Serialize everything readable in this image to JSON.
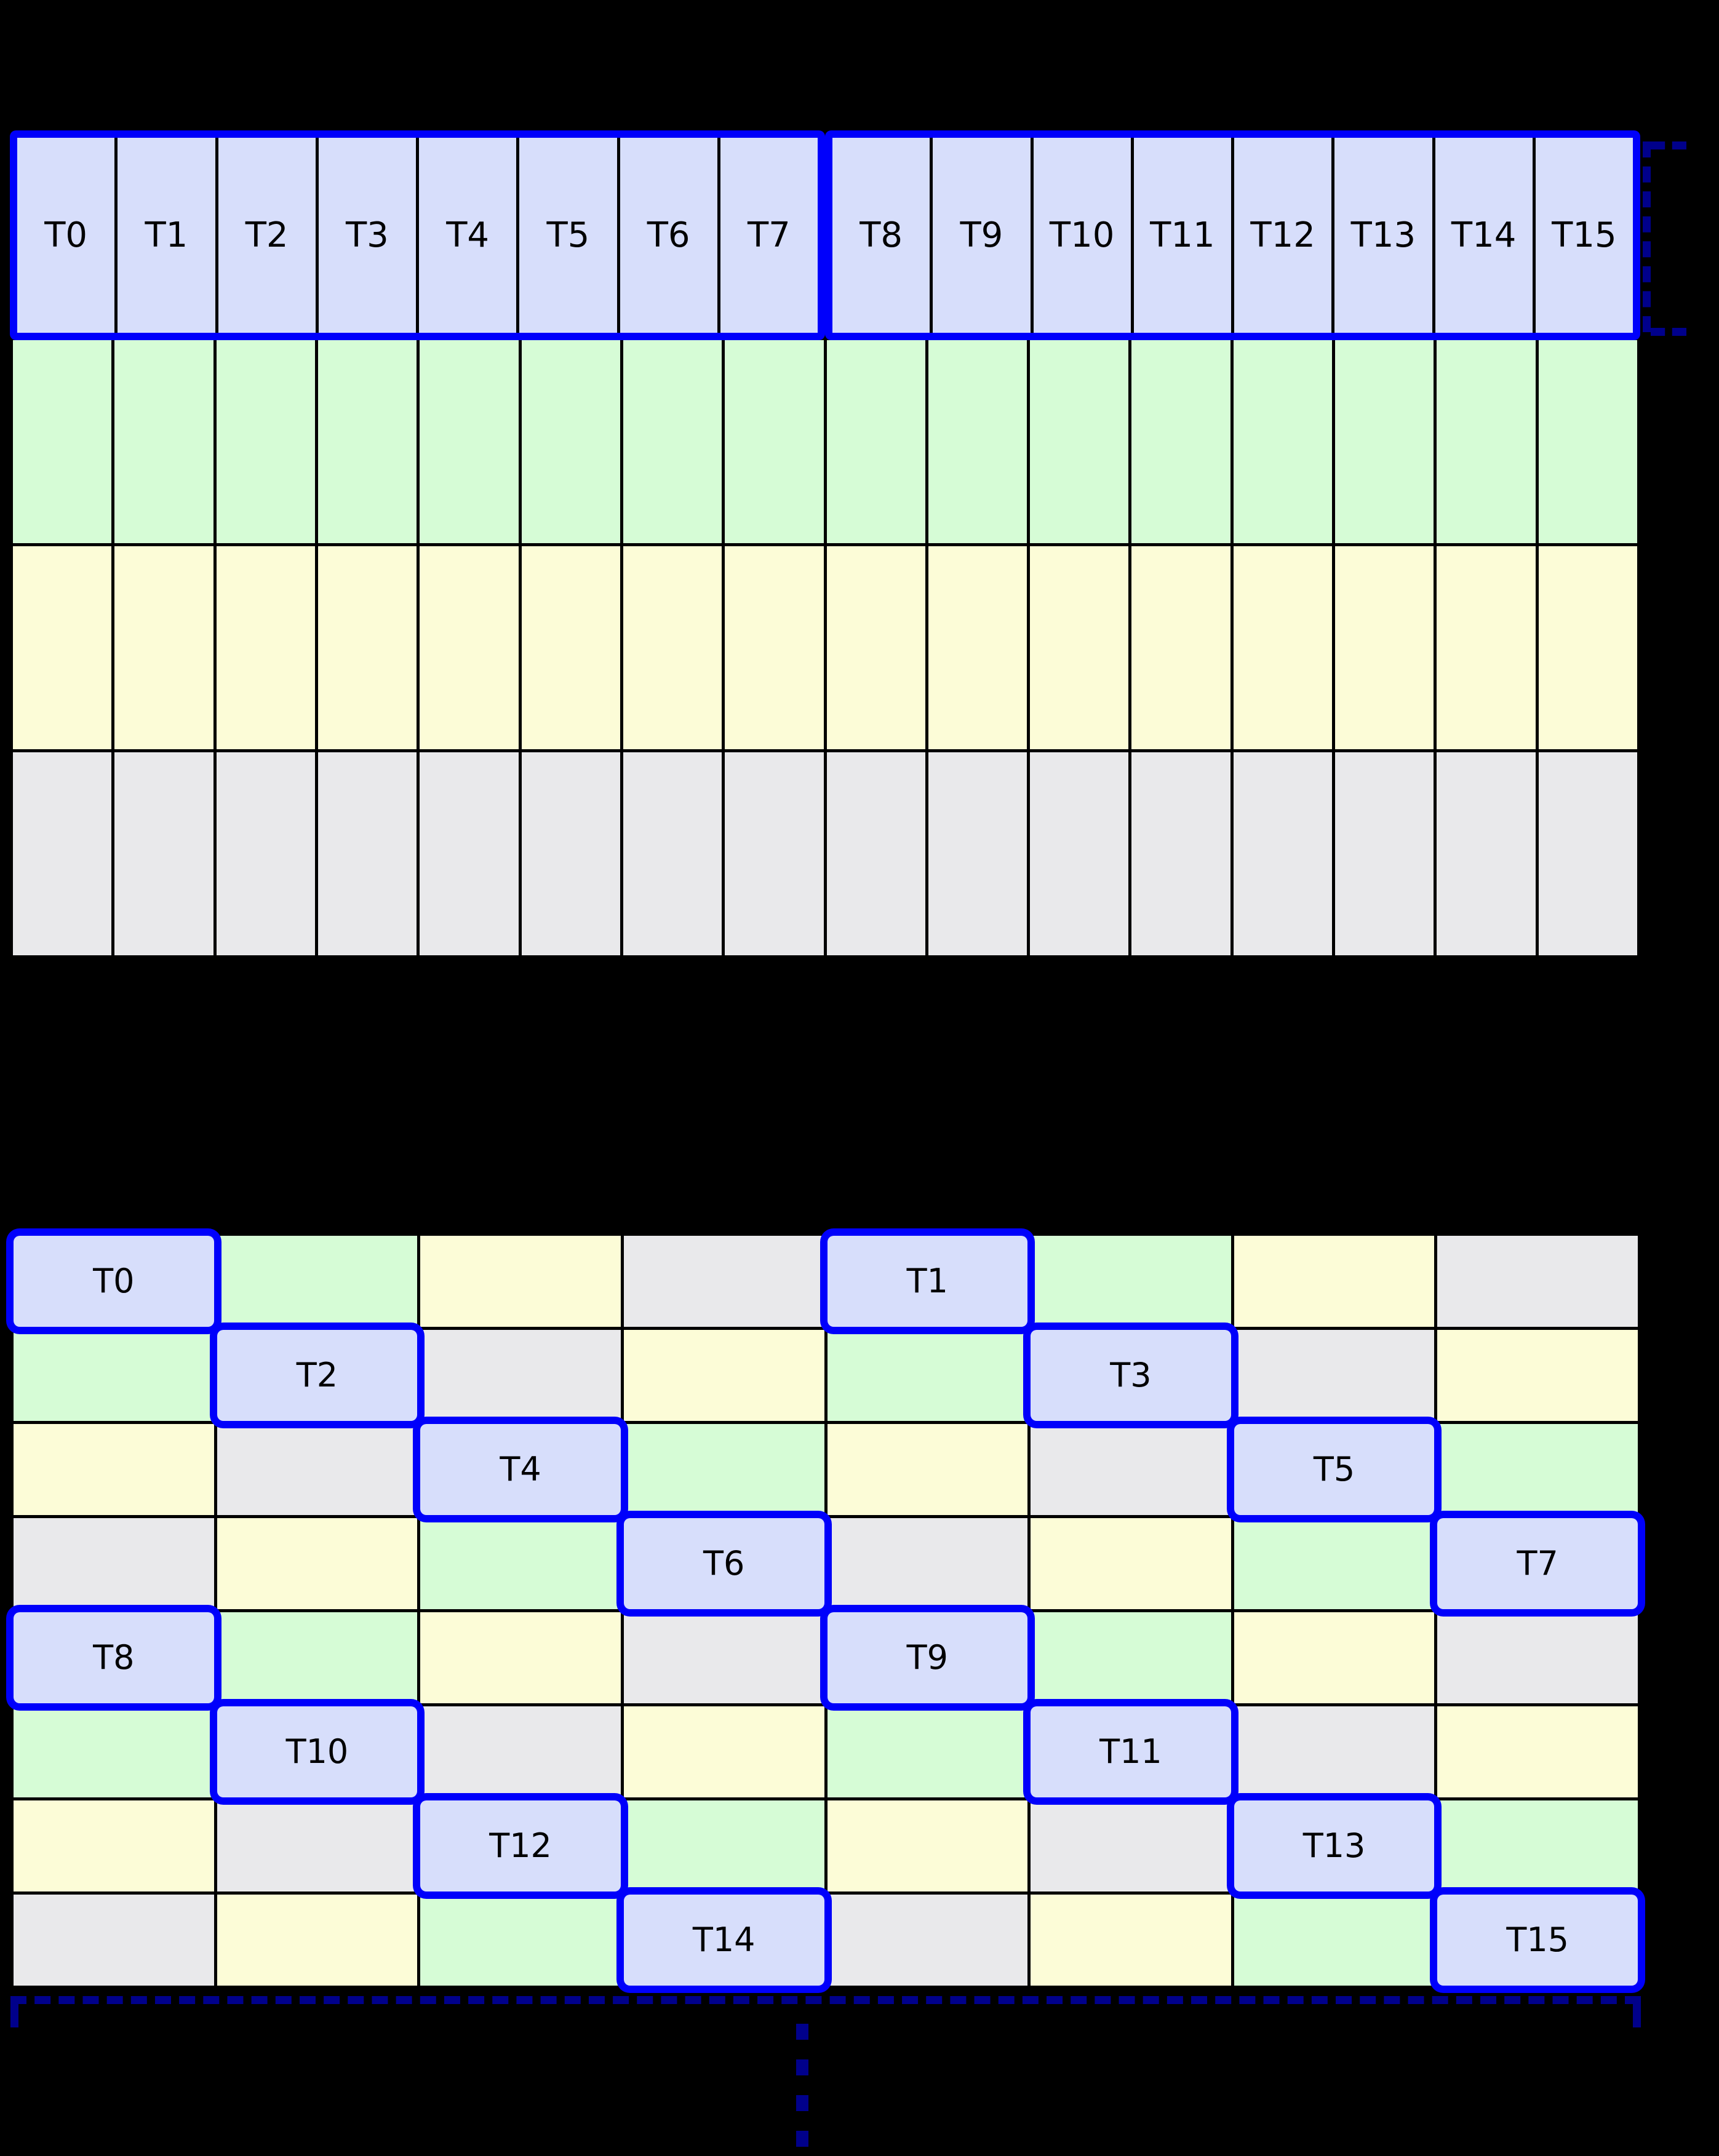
{
  "colors": {
    "background": "#000000",
    "cell_blue": "#d7defb",
    "cell_green": "#d6fcd6",
    "cell_yellow": "#fcfcd7",
    "cell_gray": "#e9e9eb",
    "highlight_blue": "#0000fb",
    "bracket_navy": "#00008b",
    "grid_line": "#000000",
    "text": "#000000"
  },
  "top_grid": {
    "thread_labels": [
      "T0",
      "T1",
      "T2",
      "T3",
      "T4",
      "T5",
      "T6",
      "T7",
      "T8",
      "T9",
      "T10",
      "T11",
      "T12",
      "T13",
      "T14",
      "T15"
    ],
    "group_size": 8,
    "memory_rows": [
      "green",
      "yellow",
      "gray"
    ]
  },
  "bottom_grid": {
    "rows": [
      {
        "cells": [
          {
            "color": "blue",
            "label": "T0",
            "highlight": true
          },
          {
            "color": "green"
          },
          {
            "color": "yellow"
          },
          {
            "color": "gray"
          },
          {
            "color": "blue",
            "label": "T1",
            "highlight": true
          },
          {
            "color": "green"
          },
          {
            "color": "yellow"
          },
          {
            "color": "gray"
          }
        ]
      },
      {
        "cells": [
          {
            "color": "green"
          },
          {
            "color": "blue",
            "label": "T2",
            "highlight": true
          },
          {
            "color": "gray"
          },
          {
            "color": "yellow"
          },
          {
            "color": "green"
          },
          {
            "color": "blue",
            "label": "T3",
            "highlight": true
          },
          {
            "color": "gray"
          },
          {
            "color": "yellow"
          }
        ]
      },
      {
        "cells": [
          {
            "color": "yellow"
          },
          {
            "color": "gray"
          },
          {
            "color": "blue",
            "label": "T4",
            "highlight": true
          },
          {
            "color": "green"
          },
          {
            "color": "yellow"
          },
          {
            "color": "gray"
          },
          {
            "color": "blue",
            "label": "T5",
            "highlight": true
          },
          {
            "color": "green"
          }
        ]
      },
      {
        "cells": [
          {
            "color": "gray"
          },
          {
            "color": "yellow"
          },
          {
            "color": "green"
          },
          {
            "color": "blue",
            "label": "T6",
            "highlight": true
          },
          {
            "color": "gray"
          },
          {
            "color": "yellow"
          },
          {
            "color": "green"
          },
          {
            "color": "blue",
            "label": "T7",
            "highlight": true
          }
        ]
      },
      {
        "cells": [
          {
            "color": "blue",
            "label": "T8",
            "highlight": true
          },
          {
            "color": "green"
          },
          {
            "color": "yellow"
          },
          {
            "color": "gray"
          },
          {
            "color": "blue",
            "label": "T9",
            "highlight": true
          },
          {
            "color": "green"
          },
          {
            "color": "yellow"
          },
          {
            "color": "gray"
          }
        ]
      },
      {
        "cells": [
          {
            "color": "green"
          },
          {
            "color": "blue",
            "label": "T10",
            "highlight": true
          },
          {
            "color": "gray"
          },
          {
            "color": "yellow"
          },
          {
            "color": "green"
          },
          {
            "color": "blue",
            "label": "T11",
            "highlight": true
          },
          {
            "color": "gray"
          },
          {
            "color": "yellow"
          }
        ]
      },
      {
        "cells": [
          {
            "color": "yellow"
          },
          {
            "color": "gray"
          },
          {
            "color": "blue",
            "label": "T12",
            "highlight": true
          },
          {
            "color": "green"
          },
          {
            "color": "yellow"
          },
          {
            "color": "gray"
          },
          {
            "color": "blue",
            "label": "T13",
            "highlight": true
          },
          {
            "color": "green"
          }
        ]
      },
      {
        "cells": [
          {
            "color": "gray"
          },
          {
            "color": "yellow"
          },
          {
            "color": "green"
          },
          {
            "color": "blue",
            "label": "T14",
            "highlight": true
          },
          {
            "color": "gray"
          },
          {
            "color": "yellow"
          },
          {
            "color": "green"
          },
          {
            "color": "blue",
            "label": "T15",
            "highlight": true
          }
        ]
      }
    ]
  },
  "annotations": {
    "ellipsis_dash_count": 4
  }
}
